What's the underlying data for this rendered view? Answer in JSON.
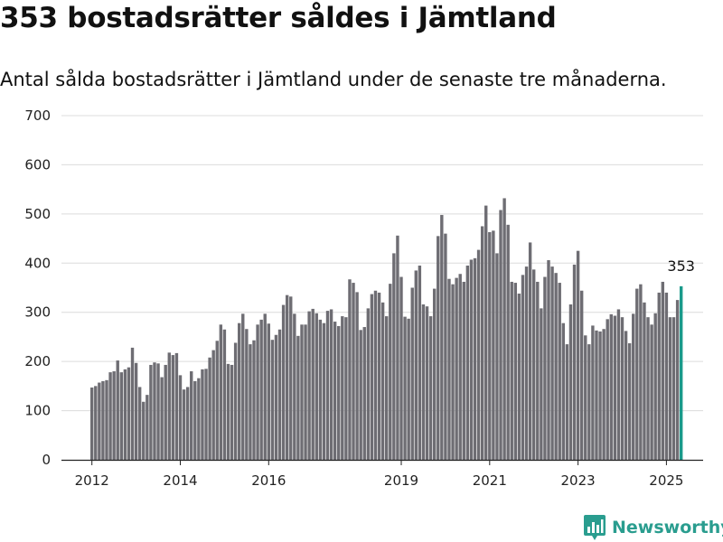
{
  "header": {
    "title": "353 bostadsrätter såldes i Jämtland",
    "subtitle": "Antal sålda bostadsrätter i Jämtland under de senaste tre månaderna."
  },
  "colors": {
    "bar": "#6e6d73",
    "highlight": "#1a9a8b",
    "grid": "#dcdcdc",
    "brand": "#2a9d8f"
  },
  "brand": {
    "name": "Newsworthy",
    "icon": "bar-chart-logo-icon"
  },
  "chart_data": {
    "type": "bar",
    "title": "353 bostadsrätter såldes i Jämtland",
    "subtitle": "Antal sålda bostadsrätter i Jämtland under de senaste tre månaderna.",
    "xlabel": "",
    "ylabel": "",
    "ylim": [
      0,
      700
    ],
    "yticks": [
      0,
      100,
      200,
      300,
      400,
      500,
      600,
      700
    ],
    "xticks": [
      {
        "label": "2012",
        "index": 0
      },
      {
        "label": "2014",
        "index": 24
      },
      {
        "label": "2016",
        "index": 48
      },
      {
        "label": "2019",
        "index": 84
      },
      {
        "label": "2021",
        "index": 108
      },
      {
        "label": "2023",
        "index": 132
      },
      {
        "label": "2025",
        "index": 156
      }
    ],
    "grid": true,
    "highlight_index": 160,
    "highlight_label": "353",
    "values": [
      147,
      150,
      157,
      160,
      162,
      178,
      180,
      202,
      178,
      184,
      188,
      228,
      197,
      148,
      118,
      132,
      193,
      198,
      196,
      168,
      193,
      218,
      213,
      217,
      172,
      143,
      148,
      180,
      160,
      166,
      184,
      185,
      208,
      223,
      242,
      275,
      265,
      195,
      193,
      238,
      278,
      297,
      266,
      235,
      243,
      275,
      285,
      297,
      277,
      244,
      254,
      265,
      315,
      335,
      332,
      297,
      252,
      275,
      275,
      302,
      307,
      298,
      285,
      278,
      303,
      306,
      281,
      272,
      292,
      290,
      367,
      360,
      341,
      264,
      270,
      308,
      337,
      344,
      340,
      320,
      292,
      358,
      420,
      456,
      372,
      291,
      287,
      350,
      385,
      395,
      316,
      312,
      292,
      348,
      455,
      498,
      460,
      368,
      357,
      370,
      378,
      362,
      395,
      407,
      410,
      427,
      475,
      517,
      463,
      466,
      420,
      508,
      532,
      478,
      362,
      360,
      338,
      376,
      393,
      442,
      387,
      362,
      308,
      372,
      406,
      393,
      380,
      360,
      278,
      235,
      316,
      397,
      425,
      344,
      253,
      235,
      273,
      263,
      261,
      266,
      286,
      296,
      293,
      306,
      290,
      262,
      237,
      297,
      348,
      357,
      320,
      290,
      275,
      298,
      340,
      362,
      340,
      290,
      290,
      325,
      353
    ]
  }
}
